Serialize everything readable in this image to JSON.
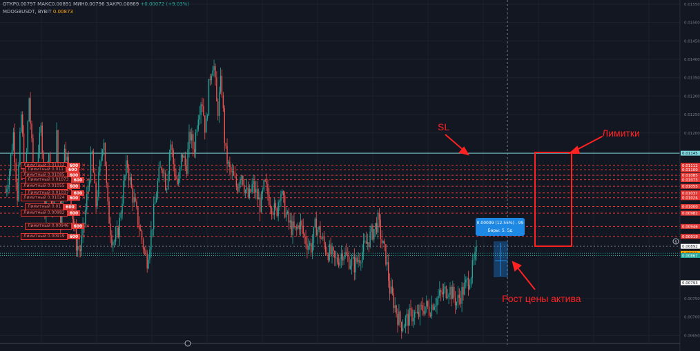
{
  "header": {
    "line1_open": "ОТКР0.00797",
    "line1_high": "МАКС0.00891",
    "line1_low": "МИН0.00796",
    "line1_close": "ЗАКР0.00869",
    "line1_change": "+0.00072 (+9.03%)",
    "line2_symbol": "MDOGBUSDT, BYBIT",
    "line2_price": "0.00873"
  },
  "orders": [
    {
      "label": "Лимитный 0.01112",
      "qty": "600",
      "close": "✕"
    },
    {
      "label": "Лимитный 0.011",
      "qty": "600",
      "close": "✕"
    },
    {
      "label": "Лимитный 0.01085",
      "qty": "600",
      "close": "✕"
    },
    {
      "label": "Лимитный 0.01073",
      "qty": "600",
      "close": "✕"
    },
    {
      "label": "Лимитный 0.01055",
      "qty": "600",
      "close": "✕"
    },
    {
      "label": "Лимитный 0.01037",
      "qty": "600",
      "close": "✕"
    },
    {
      "label": "Лимитный 0.01024",
      "qty": "600",
      "close": "✕"
    },
    {
      "label": "Лимитный 0.01",
      "qty": "600",
      "close": "✕"
    },
    {
      "label": "Лимитный 0.00982",
      "qty": "600",
      "close": "✕"
    },
    {
      "label": "Лимитный 0.00946",
      "qty": "600",
      "close": "✕"
    },
    {
      "label": "Лимитный 0.00919",
      "qty": "600",
      "close": "✕"
    }
  ],
  "tooltip": {
    "line1": "0.00099 (12.55%) , 99",
    "line2": "Бары: 5, 5д"
  },
  "annotations": {
    "sl": "SL",
    "limits": "Лимитки",
    "growth": "Рост цены актива",
    "color": "#ff2222"
  },
  "colors": {
    "background": "#131722",
    "up": "#26a69a",
    "down": "#ef5350",
    "sl_line": "#7fd6dc",
    "order_line": "#e53935",
    "current_line": "#26a69a",
    "measure": "#1e88e5",
    "axis_label_bg": "#e53935"
  },
  "chart_data": {
    "type": "candlestick",
    "symbol": "MDOGBUSDT, BYBIT",
    "ylim": [
      0.0063,
      0.0155
    ],
    "y_ticks": [
      "0.01550",
      "0.01500",
      "0.01450",
      "0.01400",
      "0.01350",
      "0.01300",
      "0.01250",
      "0.01200",
      "0.00750",
      "0.00700",
      "0.00650"
    ],
    "levels": [
      {
        "value": 0.01145,
        "label": "0.01145",
        "kind": "sl"
      },
      {
        "value": 0.01112,
        "label": "0.01112",
        "kind": "order"
      },
      {
        "value": 0.011,
        "label": "0.01100",
        "kind": "order"
      },
      {
        "value": 0.01085,
        "label": "0.01085",
        "kind": "order"
      },
      {
        "value": 0.01073,
        "label": "0.01073",
        "kind": "order"
      },
      {
        "value": 0.01055,
        "label": "0.01055",
        "kind": "order"
      },
      {
        "value": 0.01037,
        "label": "0.01037",
        "kind": "order"
      },
      {
        "value": 0.01024,
        "label": "0.01024",
        "kind": "order"
      },
      {
        "value": 0.01,
        "label": "0.01000",
        "kind": "order"
      },
      {
        "value": 0.00982,
        "label": "0.00982",
        "kind": "order"
      },
      {
        "value": 0.00946,
        "label": "0.00946",
        "kind": "order"
      },
      {
        "value": 0.00919,
        "label": "0.00919",
        "kind": "order"
      },
      {
        "value": 0.00892,
        "label": "0.00892",
        "kind": "dotted"
      },
      {
        "value": 0.00873,
        "label": "0.00873",
        "kind": "current"
      },
      {
        "value": 0.00867,
        "label": "0.00867",
        "kind": "current2"
      },
      {
        "value": 0.00793,
        "label": "0.00793",
        "kind": "low"
      }
    ],
    "price_path": [
      0.0104,
      0.011,
      0.012,
      0.0103,
      0.0125,
      0.0106,
      0.013,
      0.011,
      0.0105,
      0.0125,
      0.01,
      0.0115,
      0.0096,
      0.012,
      0.0095,
      0.0118,
      0.011,
      0.0098,
      0.009,
      0.0088,
      0.0095,
      0.0105,
      0.0115,
      0.01,
      0.011,
      0.012,
      0.01,
      0.0092,
      0.009,
      0.0095,
      0.0105,
      0.0112,
      0.0105,
      0.01,
      0.0095,
      0.009,
      0.0085,
      0.0092,
      0.01,
      0.0108,
      0.0112,
      0.0105,
      0.0118,
      0.011,
      0.0105,
      0.0115,
      0.011,
      0.012,
      0.0115,
      0.0125,
      0.013,
      0.012,
      0.0135,
      0.014,
      0.0125,
      0.0135,
      0.0115,
      0.011,
      0.0108,
      0.0105,
      0.011,
      0.0105,
      0.0102,
      0.0106,
      0.0103,
      0.01,
      0.0106,
      0.0103,
      0.01,
      0.0098,
      0.0105,
      0.01,
      0.0096,
      0.0094,
      0.0093,
      0.0096,
      0.0092,
      0.009,
      0.0089,
      0.0095,
      0.0093,
      0.009,
      0.0088,
      0.0087,
      0.0085,
      0.0086,
      0.0088,
      0.0086,
      0.0085,
      0.0084,
      0.0086,
      0.0088,
      0.009,
      0.0092,
      0.0094,
      0.0096,
      0.009,
      0.0086,
      0.0077,
      0.0074,
      0.007,
      0.0068,
      0.0069,
      0.007,
      0.0071,
      0.007,
      0.0072,
      0.0073,
      0.0072,
      0.0074,
      0.0075,
      0.0076,
      0.0077,
      0.0078,
      0.0076,
      0.0074,
      0.0076,
      0.0078,
      0.008,
      0.0083,
      0.00869
    ]
  }
}
